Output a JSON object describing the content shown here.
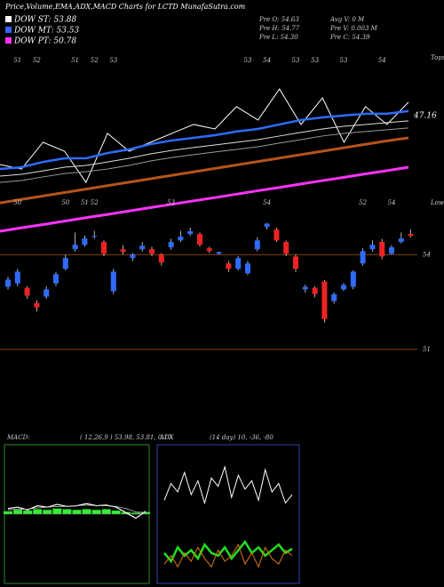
{
  "header": {
    "title": "Price,Volume,EMA,ADX,MACD Charts for LCTD MunafaSutra.com",
    "legend": [
      {
        "name": "DOW ST: 53.88",
        "color": "#ffffff"
      },
      {
        "name": "DOW MT: 53.53",
        "color": "#3366ff"
      },
      {
        "name": "DOW PT: 50.78",
        "color": "#ff33ff"
      }
    ],
    "info": [
      "Pre  O: 54.63",
      "Avg V: 0  M",
      "Pre  H: 54.77",
      "Pre  V: 0.003 M",
      "Pre  L: 54.30",
      "Pre  C: 54.39"
    ]
  },
  "chart_data": [
    {
      "type": "line",
      "tops_label": "Tops",
      "lows_label": "Lows",
      "last_label": "47.16",
      "ylim": [
        41,
        50
      ],
      "series": [
        {
          "name": "price",
          "color": "#ffffff",
          "values": [
            44.51,
            44.29,
            45.61,
            45.17,
            43.63,
            46.05,
            45.17,
            45.61,
            46.05,
            46.49,
            46.27,
            47.37,
            46.71,
            48.24,
            46.49,
            47.8,
            45.61,
            47.37,
            46.49,
            47.59
          ]
        },
        {
          "name": "ema-st",
          "color": "#2e6bff",
          "values": [
            44.29,
            44.38,
            44.64,
            44.82,
            44.82,
            45.08,
            45.26,
            45.52,
            45.7,
            45.83,
            45.96,
            46.14,
            46.27,
            46.49,
            46.71,
            46.84,
            46.93,
            47.02,
            47.02,
            47.15
          ]
        },
        {
          "name": "ema-mt",
          "color": "#dddddd",
          "values": [
            43.94,
            44.03,
            44.2,
            44.38,
            44.47,
            44.64,
            44.82,
            45.04,
            45.21,
            45.35,
            45.48,
            45.61,
            45.74,
            45.92,
            46.1,
            46.27,
            46.4,
            46.49,
            46.58,
            46.67
          ]
        },
        {
          "name": "ema-lt",
          "color": "#999999",
          "values": [
            43.63,
            43.72,
            43.9,
            44.07,
            44.16,
            44.29,
            44.47,
            44.69,
            44.86,
            45,
            45.13,
            45.26,
            45.39,
            45.57,
            45.74,
            45.92,
            46.05,
            46.14,
            46.23,
            46.32
          ]
        },
        {
          "name": "ema-100",
          "color": "#b5541a",
          "values": [
            42.62,
            42.79,
            42.96,
            43.13,
            43.3,
            43.47,
            43.64,
            43.81,
            43.98,
            44.15,
            44.32,
            44.49,
            44.66,
            44.83,
            45,
            45.17,
            45.34,
            45.51,
            45.68,
            45.83
          ]
        },
        {
          "name": "ema-200",
          "color": "#ff33ff",
          "values": [
            41.22,
            41.39,
            41.55,
            41.72,
            41.89,
            42.05,
            42.22,
            42.39,
            42.55,
            42.72,
            42.88,
            43.05,
            43.22,
            43.38,
            43.55,
            43.72,
            43.88,
            44.05,
            44.21,
            44.38
          ]
        }
      ]
    },
    {
      "type": "candlestick",
      "ylim": [
        50.8,
        55.02
      ],
      "yticks": [
        51,
        54
      ],
      "up_color": "#2e6bff",
      "down_color": "#ee2222",
      "top_labels": [
        null,
        "51",
        null,
        "52",
        null,
        null,
        null,
        "51",
        null,
        "52",
        null,
        "53",
        null,
        null,
        null,
        null,
        null,
        null,
        null,
        null,
        null,
        null,
        null,
        null,
        null,
        "53",
        null,
        "54",
        null,
        null,
        "53",
        null,
        "53",
        null,
        null,
        "53",
        null,
        null,
        null,
        "54",
        null,
        null,
        null
      ],
      "bottom_labels": [
        null,
        "50",
        null,
        null,
        null,
        null,
        "50",
        null,
        "51",
        "52",
        null,
        null,
        null,
        null,
        null,
        null,
        null,
        "53",
        null,
        null,
        null,
        null,
        null,
        null,
        null,
        null,
        null,
        "54",
        null,
        null,
        null,
        null,
        null,
        null,
        null,
        null,
        null,
        "52",
        null,
        null,
        "54",
        null,
        null
      ],
      "open": [
        52.98,
        53.09,
        52.95,
        52.47,
        52.67,
        53.09,
        53.55,
        54.17,
        54.31,
        54.57,
        54.4,
        52.84,
        54.17,
        53.89,
        54.17,
        54.17,
        54,
        54.23,
        54.45,
        54.65,
        54.65,
        54.2,
        54.03,
        53.72,
        53.55,
        53.41,
        54.17,
        54.88,
        54.79,
        54.4,
        53.94,
        52.9,
        52.95,
        53.15,
        52.53,
        52.9,
        52.98,
        53.72,
        54.17,
        54.4,
        54.03,
        54.4,
        54.65
      ],
      "close": [
        53.21,
        53.46,
        52.7,
        52.33,
        52.9,
        53.38,
        53.89,
        54.31,
        54.51,
        54.59,
        54.03,
        53.46,
        54.08,
        54,
        54.28,
        54.03,
        53.75,
        54.4,
        54.57,
        54.74,
        54.31,
        54.11,
        54.08,
        53.55,
        53.89,
        53.72,
        54.45,
        54.98,
        54.45,
        54.03,
        53.55,
        52.98,
        52.75,
        51.96,
        52.75,
        53.04,
        53.46,
        54.11,
        54.31,
        53.94,
        54.23,
        54.51,
        54.59
      ],
      "high": [
        53.3,
        53.55,
        53,
        52.55,
        53,
        53.45,
        54,
        54.7,
        54.6,
        54.75,
        54.45,
        53.55,
        54.3,
        54.05,
        54.4,
        54.25,
        54.05,
        54.5,
        54.75,
        54.85,
        54.7,
        54.25,
        54.1,
        53.8,
        53.95,
        53.8,
        54.55,
        55,
        54.85,
        54.45,
        54,
        53.05,
        53,
        53.2,
        52.8,
        53.1,
        53.5,
        54.2,
        54.45,
        54.5,
        54.3,
        54.7,
        54.8
      ],
      "low": [
        52.9,
        53,
        52.6,
        52.2,
        52.6,
        53,
        53.5,
        54.1,
        54.25,
        54.5,
        53.95,
        52.75,
        54,
        53.8,
        54.1,
        53.95,
        53.65,
        54.15,
        54.4,
        54.6,
        54.25,
        54.05,
        54,
        53.45,
        53.5,
        53.35,
        54.1,
        54.8,
        54.4,
        53.95,
        53.45,
        52.8,
        52.65,
        51.85,
        52.45,
        52.85,
        52.9,
        53.65,
        54.1,
        53.85,
        54,
        54.35,
        54.55
      ]
    },
    {
      "type": "macd",
      "title": "MACD:",
      "params": "( 12,26,9 ) 53.98, 53.81, 0.17",
      "ylim": [
        -1,
        1
      ],
      "macd": [
        0.08,
        0.1,
        0.06,
        0.12,
        0.1,
        0.14,
        0.11,
        0.12,
        0.15,
        0.12,
        0.13,
        0.1,
        0.02,
        -0.06,
        0.04
      ],
      "signal": [
        0.06,
        0.07,
        0.07,
        0.09,
        0.1,
        0.11,
        0.11,
        0.12,
        0.13,
        0.12,
        0.12,
        0.11,
        0.08,
        0.03,
        0.02
      ],
      "histogram": [
        0.04,
        0.06,
        0.05,
        0.07,
        0.06,
        0.08,
        0.07,
        0.06,
        0.07,
        0.06,
        0.07,
        0.05,
        0.03,
        0.02,
        0.03
      ]
    },
    {
      "type": "adx",
      "title": "ADX",
      "params": "(14 day) 10, -36, -80",
      "ylim": [
        0,
        100
      ],
      "series": [
        {
          "name": "di-plus",
          "color": "#ffffff",
          "values": [
            60,
            72,
            66,
            80,
            64,
            74,
            58,
            76,
            70,
            84,
            62,
            78,
            68,
            74,
            60,
            82,
            66,
            72,
            58,
            64
          ]
        },
        {
          "name": "adx",
          "color": "#22dd22",
          "values": [
            22,
            16,
            26,
            20,
            24,
            18,
            28,
            22,
            20,
            26,
            18,
            24,
            30,
            22,
            26,
            20,
            24,
            28,
            22,
            25
          ]
        },
        {
          "name": "di-minus",
          "color": "#dd7711",
          "values": [
            14,
            20,
            12,
            22,
            16,
            26,
            18,
            12,
            24,
            16,
            20,
            28,
            14,
            22,
            12,
            26,
            18,
            14,
            24,
            20
          ]
        }
      ]
    }
  ]
}
